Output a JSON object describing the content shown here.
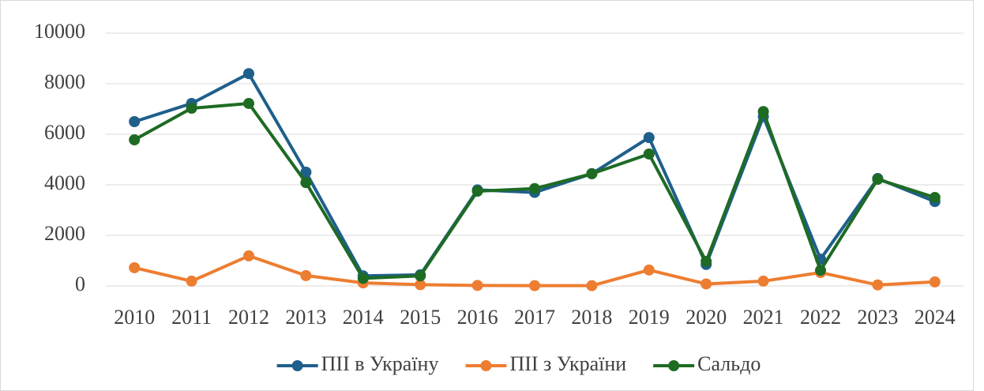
{
  "chart_data": {
    "type": "line",
    "categories": [
      "2010",
      "2011",
      "2012",
      "2013",
      "2014",
      "2015",
      "2016",
      "2017",
      "2018",
      "2019",
      "2020",
      "2021",
      "2022",
      "2023",
      "2024"
    ],
    "series": [
      {
        "name": "ПІІ в Україну",
        "color": "#1f5f8b",
        "values": [
          6500,
          7220,
          8400,
          4500,
          400,
          440,
          3800,
          3700,
          4440,
          5870,
          850,
          6700,
          1060,
          4250,
          3340
        ]
      },
      {
        "name": "ПІІ з України",
        "color": "#ed7d31",
        "values": [
          720,
          190,
          1190,
          410,
          120,
          50,
          20,
          10,
          10,
          630,
          80,
          190,
          530,
          40,
          160
        ]
      },
      {
        "name": "Сальдо",
        "color": "#1e6b24",
        "values": [
          5780,
          7030,
          7220,
          4090,
          300,
          400,
          3750,
          3850,
          4440,
          5220,
          970,
          6900,
          620,
          4220,
          3500
        ]
      }
    ],
    "ylim": [
      0,
      10000
    ],
    "yticks": [
      0,
      2000,
      4000,
      6000,
      8000,
      10000
    ],
    "grid": true,
    "legend": "bottom"
  }
}
